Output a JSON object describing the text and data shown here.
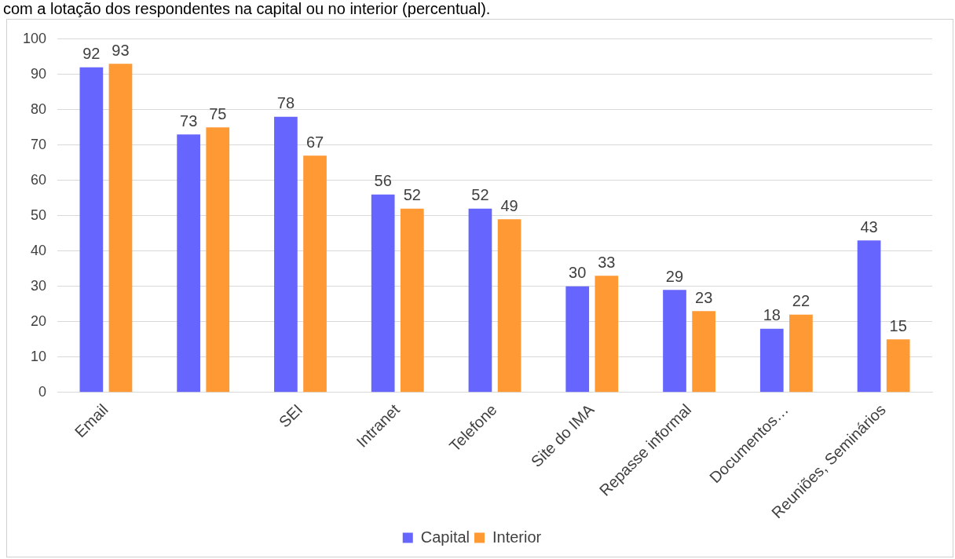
{
  "chart_data": {
    "type": "bar",
    "title": "com a lotação dos respondentes na capital ou no interior (percentual).",
    "categories": [
      "Email",
      null,
      "SEI",
      "Intranet",
      "Telefone",
      "Site do IMA",
      "Repasse informal",
      "Documentos…",
      "Reuniões, Seminários"
    ],
    "series": [
      {
        "name": "Capital",
        "color": "#6666ff",
        "values": [
          92,
          73,
          78,
          56,
          52,
          30,
          29,
          18,
          43
        ]
      },
      {
        "name": "Interior",
        "color": "#ff9933",
        "values": [
          93,
          75,
          67,
          52,
          49,
          33,
          23,
          22,
          15
        ]
      }
    ],
    "ylim": [
      0,
      100
    ],
    "yticks": [
      0,
      10,
      20,
      30,
      40,
      50,
      60,
      70,
      80,
      90,
      100
    ],
    "grid": "y",
    "legend": "bottom",
    "data_labels": true
  }
}
